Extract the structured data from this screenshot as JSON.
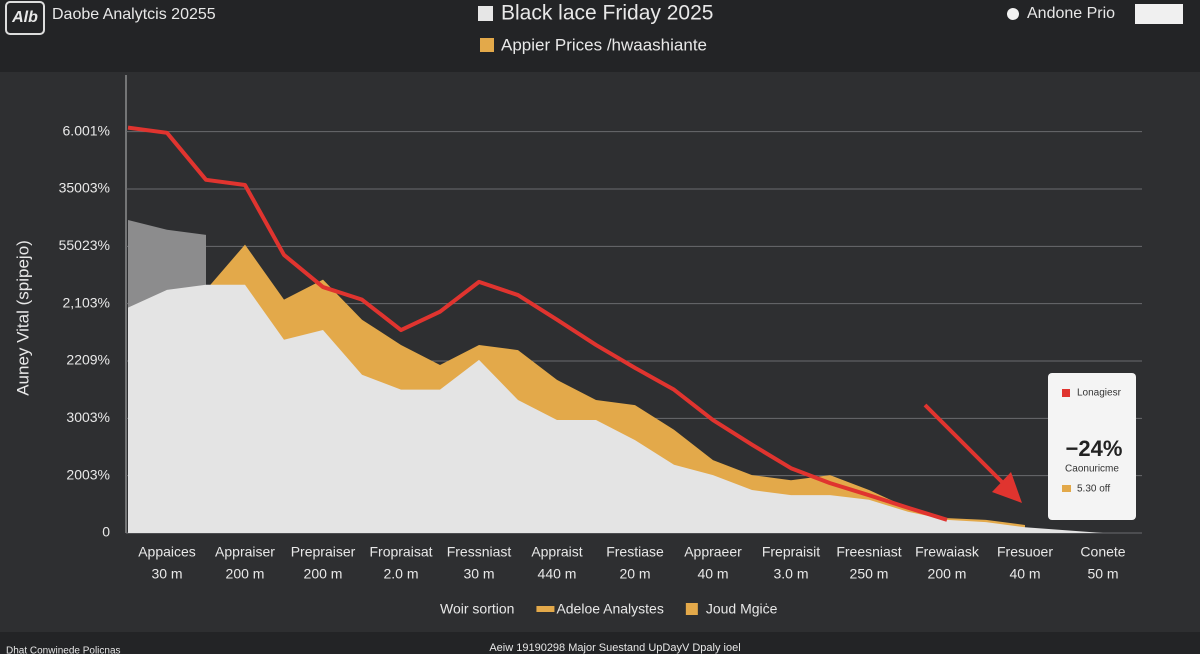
{
  "header": {
    "logo": "Alb",
    "brand": "Daobe Analytcis 20255",
    "right_label": "Andone Prio"
  },
  "chart_data": {
    "type": "area",
    "title": "Black lace Friday 2025",
    "subtitle": "Appier Prices /hwaashiante",
    "y_label": "Auney Vital (spipejo)",
    "categories": [
      [
        "Appaices",
        "30 m"
      ],
      [
        "Appraiser",
        "200 m"
      ],
      [
        "Prepraiser",
        "200 m"
      ],
      [
        "Fropraisat",
        "2.0 m"
      ],
      [
        "Fressniast",
        "30 m"
      ],
      [
        "Appraist",
        "440 m"
      ],
      [
        "Frestiase",
        "20 m"
      ],
      [
        "Appraeer",
        "40 m"
      ],
      [
        "Frepraisit",
        "3.0 m"
      ],
      [
        "Freesniast",
        "250 m"
      ],
      [
        "Frewaiask",
        "200 m"
      ],
      [
        "Fresuoer",
        "40 m"
      ],
      [
        "Conete",
        "50 m"
      ]
    ],
    "x": [
      -0.5,
      0,
      0.5,
      1,
      1.5,
      2,
      2.5,
      3,
      3.5,
      4,
      4.5,
      5,
      5.5,
      6,
      6.5,
      7,
      7.5,
      8,
      8.5,
      9,
      9.5,
      10,
      10.5,
      11,
      11.5,
      12
    ],
    "xlim": [
      -0.5,
      12.5
    ],
    "ylim": [
      0,
      7.5
    ],
    "yticks": [
      0,
      {
        "value": 1,
        "label": "2003%"
      },
      {
        "value": 2,
        "label": "3003%"
      },
      {
        "value": 3,
        "label": "2209%"
      },
      {
        "value": 4,
        "label": "2,103%"
      },
      {
        "value": 5,
        "label": "55023%"
      },
      {
        "value": 6,
        "label": "35003%"
      },
      {
        "value": 7,
        "label": "6.001%"
      }
    ],
    "grid": true,
    "series": [
      {
        "color": "#8c8c8d",
        "kind": "area",
        "values": [
          5.46,
          5.29,
          5.2,
          null,
          null,
          null,
          null,
          null,
          null,
          null,
          null,
          null,
          null,
          null,
          null,
          null,
          null,
          null,
          null,
          null,
          null,
          null,
          null,
          null,
          null,
          null
        ]
      },
      {
        "color": "#e3a94a",
        "kind": "area",
        "values": [
          null,
          null,
          4.24,
          5.03,
          4.07,
          4.42,
          3.72,
          3.28,
          2.93,
          3.28,
          3.19,
          2.67,
          2.32,
          2.23,
          1.8,
          1.27,
          1.01,
          0.92,
          1.01,
          0.75,
          0.44,
          0.26,
          0.23,
          0.14,
          null,
          null
        ]
      },
      {
        "color": "#e4e4e4",
        "kind": "area",
        "values": [
          3.93,
          4.24,
          4.33,
          4.33,
          3.37,
          3.54,
          2.76,
          2.5,
          2.5,
          3.02,
          2.32,
          1.97,
          1.97,
          1.62,
          1.19,
          1.01,
          0.75,
          0.66,
          0.66,
          0.58,
          0.37,
          0.23,
          0.19,
          0.1,
          0.05,
          0
        ]
      },
      {
        "color": "#e0342f",
        "kind": "line",
        "values": [
          7.07,
          6.98,
          6.16,
          6.07,
          4.85,
          4.29,
          4.07,
          3.54,
          3.86,
          4.38,
          4.15,
          3.72,
          3.28,
          2.88,
          2.5,
          1.97,
          1.54,
          1.13,
          0.87,
          0.66,
          0.44,
          0.23,
          null,
          null,
          null,
          null
        ]
      }
    ],
    "legend": [
      {
        "label": "Woir sortion"
      },
      {
        "label": "Adeloe Analystes",
        "color": "#e3a94a"
      },
      {
        "label": "Joud Mgiċe",
        "color": "#e3a94a"
      }
    ],
    "callout": {
      "label": "Lonagiesr",
      "value": "−24%",
      "caption": "Caonuricme",
      "note": "5.30 off"
    }
  },
  "footer": {
    "left": "Dhat Conwinede Policnas",
    "center": "Aeiw 19190298 Major Suestand UpDayV Dpaly ioel"
  }
}
